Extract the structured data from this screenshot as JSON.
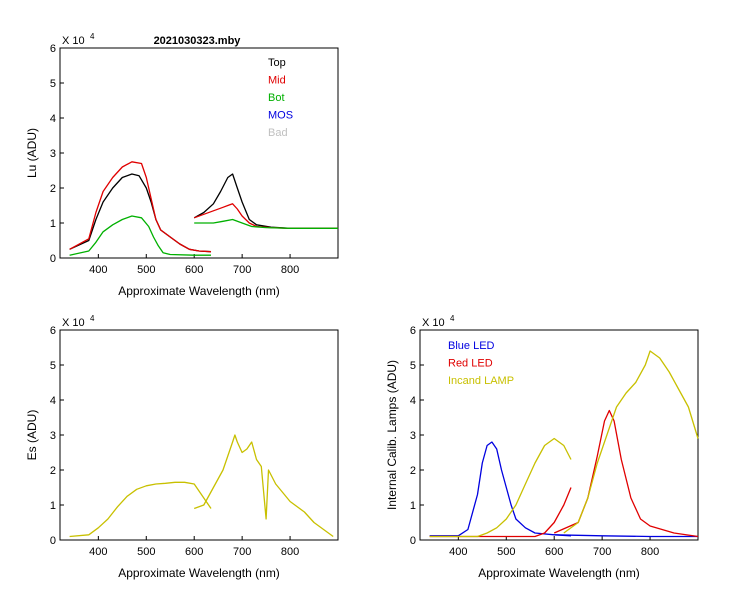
{
  "figure_title": "2021030323.mby",
  "chart_data": [
    {
      "type": "line",
      "title": "2021030323.mby",
      "xlabel": "Approximate Wavelength (nm)",
      "ylabel": "Lu (ADU)",
      "exponent_label": "X 10",
      "exponent_power": "4",
      "xlim": [
        320,
        900
      ],
      "ylim": [
        0,
        6
      ],
      "xticks": [
        400,
        500,
        600,
        700,
        800
      ],
      "yticks": [
        0,
        1,
        2,
        3,
        4,
        5,
        6
      ],
      "legend_position": "top-right",
      "legend": [
        {
          "name": "Top",
          "color": "#000000"
        },
        {
          "name": "Mid",
          "color": "#e00000"
        },
        {
          "name": "Bot",
          "color": "#00b000"
        },
        {
          "name": "MOS",
          "color": "#0000e0"
        },
        {
          "name": "Bad",
          "color": "#c0c0c0"
        }
      ],
      "series": [
        {
          "name": "Top",
          "color": "#000000",
          "segments": [
            [
              [
                340,
                0.25
              ],
              [
                380,
                0.5
              ],
              [
                395,
                1.1
              ],
              [
                410,
                1.6
              ],
              [
                430,
                2.0
              ],
              [
                450,
                2.3
              ],
              [
                470,
                2.4
              ],
              [
                485,
                2.35
              ],
              [
                500,
                2.0
              ],
              [
                510,
                1.6
              ],
              [
                520,
                1.1
              ],
              [
                530,
                0.8
              ],
              [
                550,
                0.6
              ],
              [
                570,
                0.4
              ],
              [
                590,
                0.25
              ],
              [
                610,
                0.2
              ],
              [
                635,
                0.18
              ]
            ],
            [
              [
                600,
                1.15
              ],
              [
                620,
                1.3
              ],
              [
                640,
                1.55
              ],
              [
                655,
                1.9
              ],
              [
                670,
                2.3
              ],
              [
                680,
                2.4
              ],
              [
                690,
                2.0
              ],
              [
                700,
                1.6
              ],
              [
                715,
                1.1
              ],
              [
                730,
                0.95
              ],
              [
                760,
                0.88
              ],
              [
                800,
                0.85
              ],
              [
                840,
                0.85
              ],
              [
                900,
                0.85
              ]
            ]
          ]
        },
        {
          "name": "Mid",
          "color": "#e00000",
          "segments": [
            [
              [
                340,
                0.25
              ],
              [
                380,
                0.55
              ],
              [
                395,
                1.3
              ],
              [
                410,
                1.9
              ],
              [
                430,
                2.3
              ],
              [
                450,
                2.6
              ],
              [
                470,
                2.75
              ],
              [
                490,
                2.7
              ],
              [
                500,
                2.3
              ],
              [
                510,
                1.7
              ],
              [
                520,
                1.1
              ],
              [
                530,
                0.8
              ],
              [
                550,
                0.6
              ],
              [
                570,
                0.4
              ],
              [
                590,
                0.25
              ],
              [
                610,
                0.2
              ],
              [
                635,
                0.18
              ]
            ],
            [
              [
                600,
                1.15
              ],
              [
                620,
                1.25
              ],
              [
                640,
                1.35
              ],
              [
                660,
                1.45
              ],
              [
                670,
                1.5
              ],
              [
                680,
                1.55
              ],
              [
                690,
                1.4
              ],
              [
                700,
                1.2
              ],
              [
                715,
                1.0
              ],
              [
                730,
                0.9
              ],
              [
                760,
                0.87
              ],
              [
                800,
                0.85
              ],
              [
                900,
                0.85
              ]
            ]
          ]
        },
        {
          "name": "Bot",
          "color": "#00b000",
          "segments": [
            [
              [
                340,
                0.08
              ],
              [
                380,
                0.2
              ],
              [
                395,
                0.45
              ],
              [
                410,
                0.75
              ],
              [
                430,
                0.95
              ],
              [
                450,
                1.1
              ],
              [
                470,
                1.2
              ],
              [
                490,
                1.15
              ],
              [
                505,
                0.9
              ],
              [
                515,
                0.6
              ],
              [
                525,
                0.35
              ],
              [
                535,
                0.15
              ],
              [
                550,
                0.1
              ],
              [
                600,
                0.08
              ],
              [
                635,
                0.08
              ]
            ],
            [
              [
                600,
                1.0
              ],
              [
                620,
                1.0
              ],
              [
                640,
                1.0
              ],
              [
                660,
                1.05
              ],
              [
                680,
                1.1
              ],
              [
                700,
                1.0
              ],
              [
                720,
                0.9
              ],
              [
                750,
                0.87
              ],
              [
                800,
                0.85
              ],
              [
                900,
                0.85
              ]
            ]
          ]
        },
        {
          "name": "MOS",
          "color": "#0000e0",
          "segments": []
        },
        {
          "name": "Bad",
          "color": "#c0c0c0",
          "segments": []
        }
      ]
    },
    {
      "type": "line",
      "xlabel": "Approximate Wavelength (nm)",
      "ylabel": "Es (ADU)",
      "exponent_label": "X 10",
      "exponent_power": "4",
      "xlim": [
        320,
        900
      ],
      "ylim": [
        0,
        6
      ],
      "xticks": [
        400,
        500,
        600,
        700,
        800
      ],
      "yticks": [
        0,
        1,
        2,
        3,
        4,
        5,
        6
      ],
      "series": [
        {
          "color": "#c8c000",
          "segments": [
            [
              [
                340,
                0.1
              ],
              [
                380,
                0.15
              ],
              [
                400,
                0.35
              ],
              [
                420,
                0.6
              ],
              [
                440,
                0.95
              ],
              [
                460,
                1.25
              ],
              [
                480,
                1.45
              ],
              [
                500,
                1.55
              ],
              [
                520,
                1.6
              ],
              [
                540,
                1.62
              ],
              [
                560,
                1.65
              ],
              [
                580,
                1.65
              ],
              [
                600,
                1.6
              ],
              [
                620,
                1.2
              ],
              [
                635,
                0.9
              ]
            ],
            [
              [
                600,
                0.9
              ],
              [
                620,
                1.0
              ],
              [
                640,
                1.5
              ],
              [
                660,
                2.0
              ],
              [
                670,
                2.4
              ],
              [
                680,
                2.8
              ],
              [
                685,
                3.0
              ],
              [
                690,
                2.8
              ],
              [
                700,
                2.5
              ],
              [
                710,
                2.6
              ],
              [
                720,
                2.8
              ],
              [
                730,
                2.3
              ],
              [
                740,
                2.1
              ],
              [
                750,
                0.6
              ],
              [
                755,
                2.0
              ],
              [
                770,
                1.6
              ],
              [
                800,
                1.1
              ],
              [
                830,
                0.8
              ],
              [
                850,
                0.5
              ],
              [
                870,
                0.3
              ],
              [
                890,
                0.1
              ]
            ]
          ]
        }
      ]
    },
    {
      "type": "line",
      "xlabel": "Approximate Wavelength (nm)",
      "ylabel": "Internal Calib. Lamps (ADU)",
      "exponent_label": "X 10",
      "exponent_power": "4",
      "xlim": [
        320,
        900
      ],
      "ylim": [
        0,
        6
      ],
      "xticks": [
        400,
        500,
        600,
        700,
        800
      ],
      "yticks": [
        0,
        1,
        2,
        3,
        4,
        5,
        6
      ],
      "legend_position": "top-left",
      "legend": [
        {
          "name": "Blue LED",
          "color": "#0000e0"
        },
        {
          "name": "Red LED",
          "color": "#e00000"
        },
        {
          "name": "Incand LAMP",
          "color": "#c8c000"
        }
      ],
      "series": [
        {
          "name": "Blue LED",
          "color": "#0000e0",
          "segments": [
            [
              [
                340,
                0.12
              ],
              [
                400,
                0.12
              ],
              [
                420,
                0.3
              ],
              [
                440,
                1.3
              ],
              [
                450,
                2.2
              ],
              [
                460,
                2.7
              ],
              [
                470,
                2.8
              ],
              [
                480,
                2.6
              ],
              [
                490,
                2.0
              ],
              [
                500,
                1.5
              ],
              [
                510,
                1.0
              ],
              [
                520,
                0.6
              ],
              [
                540,
                0.35
              ],
              [
                560,
                0.2
              ],
              [
                600,
                0.15
              ],
              [
                635,
                0.12
              ]
            ],
            [
              [
                600,
                0.15
              ],
              [
                700,
                0.12
              ],
              [
                800,
                0.1
              ],
              [
                900,
                0.1
              ]
            ]
          ]
        },
        {
          "name": "Red LED",
          "color": "#e00000",
          "segments": [
            [
              [
                340,
                0.1
              ],
              [
                560,
                0.1
              ],
              [
                580,
                0.2
              ],
              [
                600,
                0.5
              ],
              [
                620,
                1.0
              ],
              [
                635,
                1.5
              ]
            ],
            [
              [
                600,
                0.2
              ],
              [
                650,
                0.5
              ],
              [
                670,
                1.2
              ],
              [
                690,
                2.4
              ],
              [
                705,
                3.4
              ],
              [
                715,
                3.7
              ],
              [
                725,
                3.4
              ],
              [
                740,
                2.3
              ],
              [
                760,
                1.2
              ],
              [
                780,
                0.6
              ],
              [
                800,
                0.4
              ],
              [
                850,
                0.2
              ],
              [
                900,
                0.1
              ]
            ]
          ]
        },
        {
          "name": "Incand LAMP",
          "color": "#c8c000",
          "segments": [
            [
              [
                340,
                0.1
              ],
              [
                440,
                0.1
              ],
              [
                460,
                0.2
              ],
              [
                480,
                0.35
              ],
              [
                500,
                0.6
              ],
              [
                520,
                1.0
              ],
              [
                540,
                1.6
              ],
              [
                560,
                2.2
              ],
              [
                580,
                2.7
              ],
              [
                600,
                2.9
              ],
              [
                620,
                2.7
              ],
              [
                635,
                2.3
              ]
            ],
            [
              [
                620,
                0.2
              ],
              [
                650,
                0.5
              ],
              [
                670,
                1.2
              ],
              [
                690,
                2.2
              ],
              [
                710,
                3.0
              ],
              [
                730,
                3.8
              ],
              [
                750,
                4.2
              ],
              [
                770,
                4.5
              ],
              [
                790,
                5.0
              ],
              [
                800,
                5.4
              ],
              [
                820,
                5.2
              ],
              [
                840,
                4.8
              ],
              [
                860,
                4.3
              ],
              [
                880,
                3.8
              ],
              [
                900,
                2.9
              ]
            ]
          ]
        }
      ]
    }
  ]
}
